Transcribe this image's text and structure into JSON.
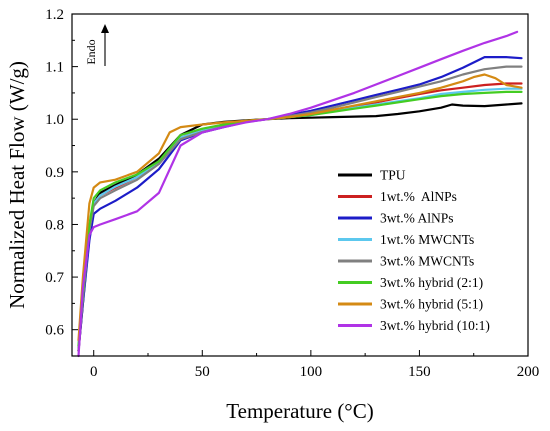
{
  "chart_data": {
    "type": "line",
    "title": "",
    "xlabel": "Temperature (°C)",
    "ylabel": "Normalized Heat Flow (W/g)",
    "xlim": [
      -10,
      200
    ],
    "ylim": [
      0.55,
      1.2
    ],
    "xticks": [
      0,
      50,
      100,
      150,
      200
    ],
    "yticks": [
      0.6,
      0.7,
      0.8,
      0.9,
      1.0,
      1.1,
      1.2
    ],
    "ytick_labels": [
      "0.6",
      "0.7",
      "0.8",
      "0.9",
      "1.0",
      "1.1",
      "1.2"
    ],
    "grid": false,
    "legend_position": "lower-right",
    "annotation": {
      "text": "Endo",
      "direction": "up"
    },
    "series": [
      {
        "name": "TPU",
        "color": "#000000",
        "x": [
          -7,
          -5,
          -2,
          0,
          3,
          10,
          20,
          30,
          40,
          50,
          60,
          70,
          80,
          90,
          100,
          110,
          120,
          130,
          140,
          150,
          160,
          165,
          170,
          180,
          190,
          197
        ],
        "y": [
          0.56,
          0.65,
          0.78,
          0.84,
          0.86,
          0.875,
          0.895,
          0.925,
          0.97,
          0.99,
          0.995,
          0.998,
          1.0,
          1.002,
          1.003,
          1.004,
          1.005,
          1.006,
          1.01,
          1.015,
          1.022,
          1.028,
          1.026,
          1.025,
          1.028,
          1.03
        ]
      },
      {
        "name": "1wt.%  AlNPs",
        "color": "#cc2020",
        "x": [
          -7,
          -5,
          -2,
          0,
          3,
          10,
          20,
          30,
          40,
          50,
          60,
          70,
          80,
          90,
          100,
          110,
          120,
          130,
          140,
          150,
          160,
          170,
          180,
          190,
          197
        ],
        "y": [
          0.56,
          0.66,
          0.79,
          0.84,
          0.855,
          0.87,
          0.89,
          0.92,
          0.965,
          0.98,
          0.99,
          0.997,
          1.0,
          1.005,
          1.01,
          1.018,
          1.025,
          1.032,
          1.04,
          1.048,
          1.055,
          1.06,
          1.065,
          1.068,
          1.068
        ]
      },
      {
        "name": "3wt.% AlNPs",
        "color": "#1c1cc8",
        "x": [
          -7,
          -5,
          -2,
          0,
          3,
          10,
          20,
          30,
          40,
          50,
          60,
          70,
          80,
          90,
          100,
          110,
          120,
          130,
          140,
          150,
          160,
          170,
          180,
          190,
          197
        ],
        "y": [
          0.56,
          0.65,
          0.77,
          0.82,
          0.83,
          0.845,
          0.87,
          0.905,
          0.96,
          0.975,
          0.985,
          0.995,
          1.0,
          1.008,
          1.016,
          1.026,
          1.036,
          1.046,
          1.056,
          1.066,
          1.08,
          1.098,
          1.118,
          1.118,
          1.116
        ]
      },
      {
        "name": "1wt.% MWCNTs",
        "color": "#5cc8ee",
        "x": [
          -7,
          -5,
          -2,
          0,
          3,
          10,
          20,
          30,
          40,
          50,
          60,
          70,
          80,
          90,
          100,
          110,
          120,
          130,
          140,
          150,
          160,
          170,
          180,
          190,
          197
        ],
        "y": [
          0.57,
          0.66,
          0.79,
          0.84,
          0.855,
          0.872,
          0.89,
          0.92,
          0.965,
          0.978,
          0.988,
          0.996,
          1.0,
          1.004,
          1.008,
          1.015,
          1.022,
          1.028,
          1.034,
          1.04,
          1.048,
          1.052,
          1.056,
          1.058,
          1.058
        ]
      },
      {
        "name": "3wt.% MWCNTs",
        "color": "#808080",
        "x": [
          -7,
          -5,
          -2,
          0,
          3,
          10,
          20,
          30,
          40,
          50,
          60,
          70,
          80,
          90,
          100,
          110,
          120,
          130,
          140,
          150,
          160,
          170,
          180,
          190,
          197
        ],
        "y": [
          0.56,
          0.66,
          0.79,
          0.835,
          0.85,
          0.865,
          0.885,
          0.915,
          0.962,
          0.976,
          0.986,
          0.995,
          1.0,
          1.006,
          1.013,
          1.022,
          1.032,
          1.042,
          1.052,
          1.062,
          1.072,
          1.085,
          1.095,
          1.1,
          1.1
        ]
      },
      {
        "name": "3wt.% hybrid (2:1)",
        "color": "#44cc22",
        "x": [
          -7,
          -5,
          -2,
          0,
          3,
          10,
          20,
          30,
          40,
          50,
          60,
          70,
          80,
          90,
          100,
          110,
          120,
          130,
          140,
          150,
          160,
          170,
          180,
          190,
          197
        ],
        "y": [
          0.57,
          0.67,
          0.8,
          0.85,
          0.865,
          0.88,
          0.895,
          0.92,
          0.97,
          0.982,
          0.99,
          0.997,
          1.0,
          1.004,
          1.008,
          1.014,
          1.02,
          1.026,
          1.032,
          1.038,
          1.044,
          1.048,
          1.05,
          1.052,
          1.052
        ]
      },
      {
        "name": "3wt.% hybrid (5:1)",
        "color": "#d48a14",
        "x": [
          -7,
          -5,
          -2,
          0,
          3,
          10,
          20,
          30,
          35,
          40,
          50,
          60,
          70,
          80,
          90,
          100,
          110,
          120,
          130,
          140,
          150,
          160,
          170,
          175,
          180,
          185,
          190,
          197
        ],
        "y": [
          0.58,
          0.7,
          0.84,
          0.87,
          0.88,
          0.885,
          0.9,
          0.935,
          0.975,
          0.985,
          0.99,
          0.994,
          0.997,
          1.0,
          1.004,
          1.01,
          1.018,
          1.026,
          1.034,
          1.042,
          1.05,
          1.06,
          1.072,
          1.08,
          1.085,
          1.078,
          1.065,
          1.06
        ]
      },
      {
        "name": "3wt.% hybrid (10:1)",
        "color": "#b033e6",
        "x": [
          -7,
          -5,
          -2,
          0,
          3,
          10,
          20,
          30,
          40,
          50,
          60,
          70,
          80,
          90,
          100,
          110,
          120,
          130,
          140,
          150,
          160,
          170,
          180,
          190,
          195
        ],
        "y": [
          0.55,
          0.68,
          0.78,
          0.795,
          0.8,
          0.81,
          0.825,
          0.86,
          0.95,
          0.975,
          0.985,
          0.994,
          1.0,
          1.01,
          1.022,
          1.036,
          1.05,
          1.066,
          1.082,
          1.098,
          1.114,
          1.13,
          1.145,
          1.158,
          1.166
        ]
      }
    ]
  }
}
